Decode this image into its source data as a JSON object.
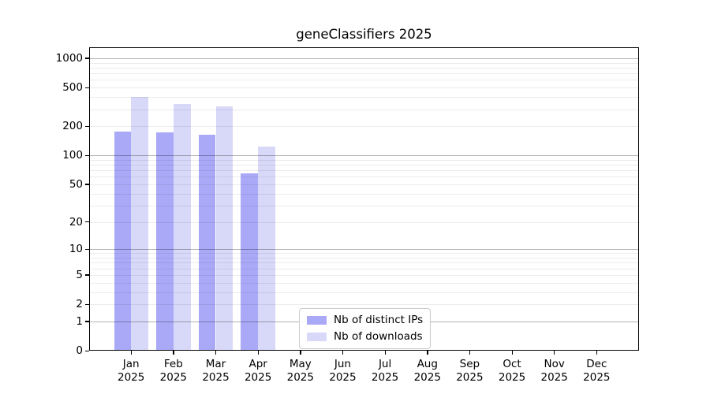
{
  "chart_data": {
    "type": "bar",
    "title": "geneClassifiers 2025",
    "x_tick_year": "2025",
    "categories": [
      "Jan",
      "Feb",
      "Mar",
      "Apr",
      "May",
      "Jun",
      "Jul",
      "Aug",
      "Sep",
      "Oct",
      "Nov",
      "Dec"
    ],
    "series": [
      {
        "name": "Nb of distinct IPs",
        "color": "#a9a9f7",
        "values": [
          177,
          174,
          164,
          65,
          0,
          0,
          0,
          0,
          0,
          0,
          0,
          0
        ]
      },
      {
        "name": "Nb of downloads",
        "color": "#d8d8f8",
        "values": [
          403,
          337,
          322,
          123,
          0,
          0,
          0,
          0,
          0,
          0,
          0,
          0
        ]
      }
    ],
    "scale": "log10(1+y)",
    "y_ticks": [
      0,
      1,
      2,
      5,
      10,
      20,
      50,
      100,
      200,
      500,
      1000
    ],
    "y_major_gridlines": [
      1,
      10,
      100,
      1000
    ],
    "y_minor_gridline_decades": [
      1,
      10,
      100
    ],
    "ylim": [
      0,
      1300
    ],
    "grid": true,
    "legend_position": "lower-center-left",
    "xlabel": "",
    "ylabel": ""
  }
}
